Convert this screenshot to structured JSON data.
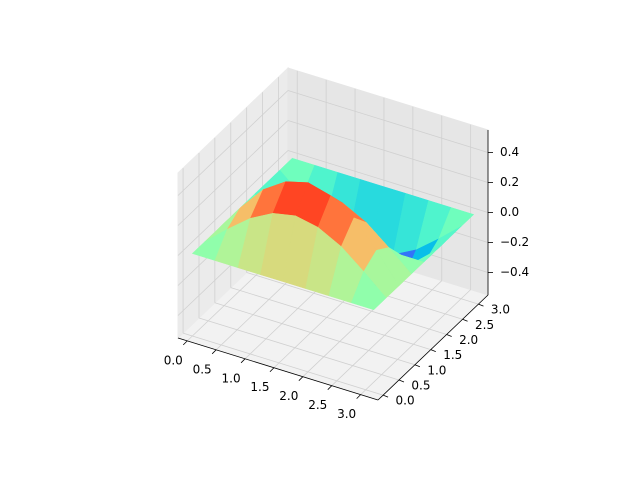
{
  "chart_data": {
    "type": "surface3d",
    "colormap": "rainbow",
    "x": [
      0,
      0.39,
      0.79,
      1.18,
      1.57,
      1.96,
      2.36,
      2.75,
      3.14
    ],
    "y": [
      0,
      0.39,
      0.79,
      1.18,
      1.57,
      1.96,
      2.36,
      2.75,
      3.14
    ],
    "z": [
      [
        0,
        0,
        0,
        0,
        0,
        0,
        0,
        0,
        0
      ],
      [
        0,
        0.13,
        0.25,
        0.33,
        0.36,
        0.33,
        0.25,
        0.13,
        0
      ],
      [
        0,
        0.19,
        0.36,
        0.46,
        0.5,
        0.46,
        0.36,
        0.19,
        0
      ],
      [
        0,
        0.13,
        0.25,
        0.33,
        0.36,
        0.33,
        0.25,
        0.13,
        0
      ],
      [
        0,
        0,
        0,
        0,
        0,
        0,
        0,
        0,
        0
      ],
      [
        0,
        -0.13,
        -0.25,
        -0.33,
        -0.36,
        -0.33,
        -0.25,
        -0.13,
        0
      ],
      [
        0,
        -0.19,
        -0.36,
        -0.46,
        -0.5,
        -0.46,
        -0.36,
        -0.19,
        0
      ],
      [
        0,
        -0.13,
        -0.25,
        -0.33,
        -0.36,
        -0.33,
        -0.25,
        -0.13,
        0
      ],
      [
        0,
        0,
        0,
        0,
        0,
        0,
        0,
        0,
        0
      ]
    ],
    "xlim": [
      -0.16,
      3.3
    ],
    "ylim": [
      -0.16,
      3.3
    ],
    "zlim": [
      -0.55,
      0.55
    ],
    "xticks": [
      {
        "value": 0,
        "label": "0.0"
      },
      {
        "value": 0.5,
        "label": "0.5"
      },
      {
        "value": 1,
        "label": "1.0"
      },
      {
        "value": 1.5,
        "label": "1.5"
      },
      {
        "value": 2,
        "label": "2.0"
      },
      {
        "value": 2.5,
        "label": "2.5"
      },
      {
        "value": 3,
        "label": "3.0"
      }
    ],
    "yticks": [
      {
        "value": 0,
        "label": "0.0"
      },
      {
        "value": 0.5,
        "label": "0.5"
      },
      {
        "value": 1,
        "label": "1.0"
      },
      {
        "value": 1.5,
        "label": "1.5"
      },
      {
        "value": 2,
        "label": "2.0"
      },
      {
        "value": 2.5,
        "label": "2.5"
      },
      {
        "value": 3,
        "label": "3.0"
      }
    ],
    "zticks": [
      {
        "value": -0.4,
        "label": "−0.4"
      },
      {
        "value": -0.2,
        "label": "−0.2"
      },
      {
        "value": 0,
        "label": "0.0"
      },
      {
        "value": 0.2,
        "label": "0.2"
      },
      {
        "value": 0.4,
        "label": "0.4"
      }
    ],
    "grid": true
  }
}
